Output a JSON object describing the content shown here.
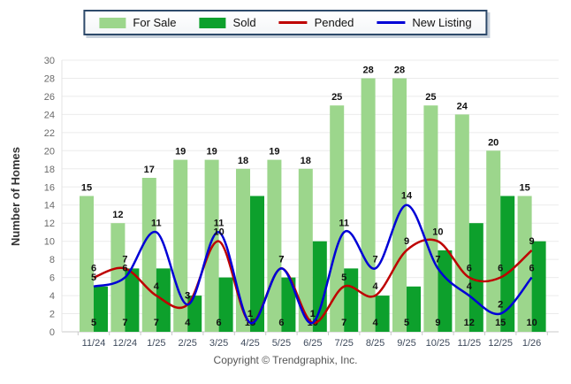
{
  "footer": "Copyright © Trendgraphix, Inc.",
  "chart_data": {
    "type": "bar",
    "subtype": "grouped-bars-with-spline-lines",
    "title": "",
    "categories": [
      "11/24",
      "12/24",
      "1/25",
      "2/25",
      "3/25",
      "4/25",
      "5/25",
      "6/25",
      "7/25",
      "8/25",
      "9/25",
      "10/25",
      "11/25",
      "12/25",
      "1/26"
    ],
    "series": [
      {
        "name": "For Sale",
        "type": "bar",
        "color": "#9CD68C",
        "values": [
          15,
          12,
          17,
          19,
          19,
          18,
          19,
          18,
          25,
          28,
          28,
          25,
          24,
          20,
          15
        ]
      },
      {
        "name": "Sold",
        "type": "bar",
        "color": "#0DA02C",
        "values": [
          5,
          7,
          7,
          4,
          6,
          15,
          6,
          10,
          7,
          4,
          5,
          9,
          12,
          15,
          10
        ]
      },
      {
        "name": "Pended",
        "type": "line",
        "color": "#BE0000",
        "values": [
          6,
          7,
          4,
          3,
          10,
          1,
          7,
          1,
          5,
          4,
          9,
          10,
          6,
          6,
          9
        ]
      },
      {
        "name": "New Listing",
        "type": "line",
        "color": "#0000D6",
        "values": [
          5,
          6,
          11,
          3,
          11,
          1,
          7,
          1,
          11,
          7,
          14,
          7,
          4,
          2,
          6
        ]
      }
    ],
    "xlabel": "",
    "ylabel": "Number of Homes",
    "ylim": [
      0,
      30
    ],
    "ytick_step": 2,
    "grid": true,
    "legend_position": "top",
    "value_labels": true,
    "colors": {
      "grid": "#ebebeb",
      "axis": "#c9c9c9",
      "ytick_text": "#6a6a6a",
      "xtick_text": "#3e4a5c",
      "value_label": "#111111",
      "ylabel_text": "#333333"
    }
  }
}
